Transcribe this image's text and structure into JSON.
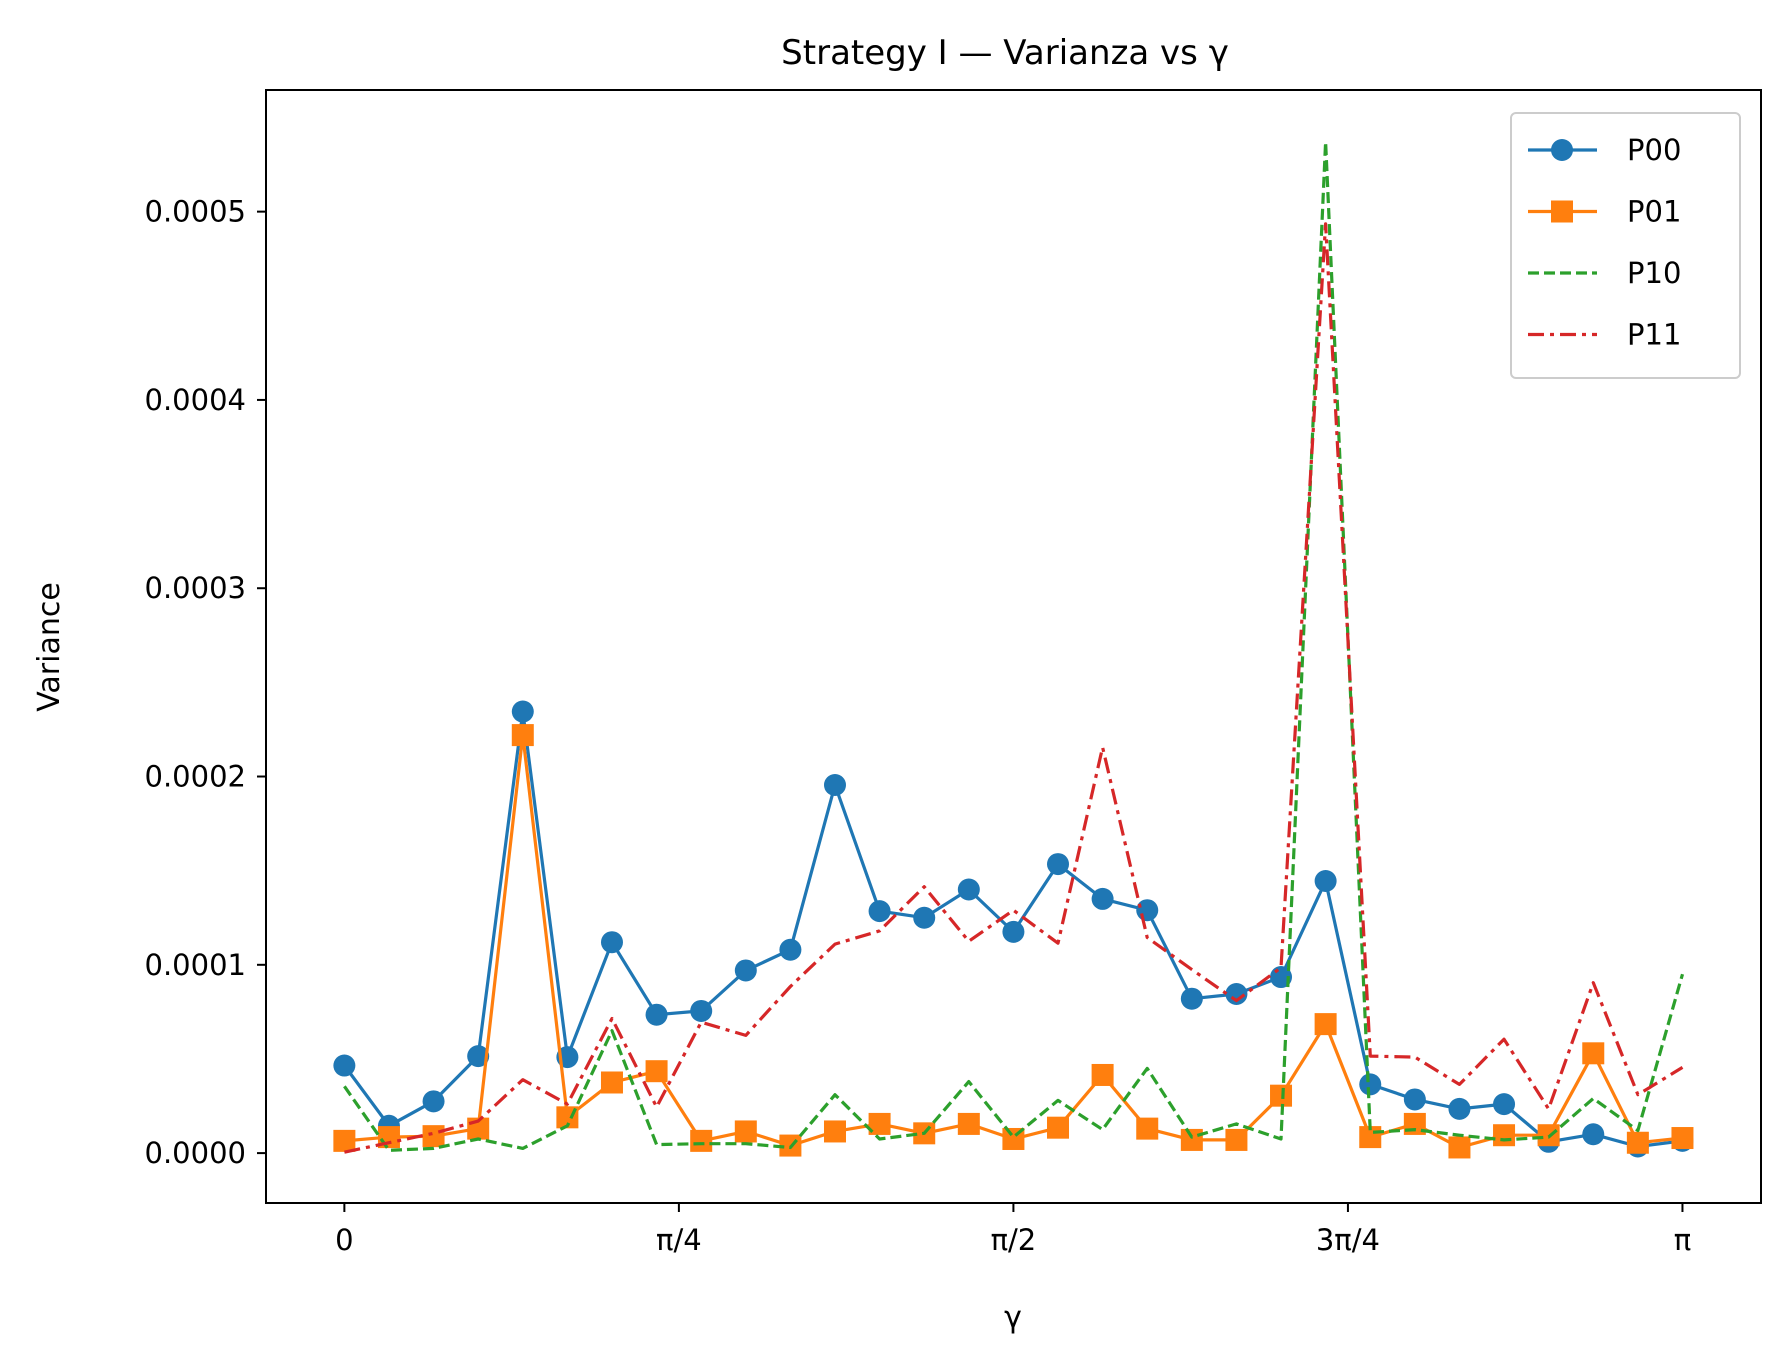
{
  "chart_data": {
    "type": "line",
    "title": "Strategy I — Varianza vs γ",
    "xlabel": "γ",
    "ylabel": "Variance",
    "xlim": [
      -0.184,
      3.326
    ],
    "ylim": [
      -2.65e-05,
      0.0005646
    ],
    "xticks": [
      {
        "value": 0,
        "label": "0"
      },
      {
        "value": 0.7854,
        "label": "π/4"
      },
      {
        "value": 1.5708,
        "label": "π/2"
      },
      {
        "value": 2.3562,
        "label": "3π/4"
      },
      {
        "value": 3.1416,
        "label": "π"
      }
    ],
    "yticks": [
      {
        "value": 0,
        "label": "0.0000"
      },
      {
        "value": 0.0001,
        "label": "0.0001"
      },
      {
        "value": 0.0002,
        "label": "0.0002"
      },
      {
        "value": 0.0003,
        "label": "0.0003"
      },
      {
        "value": 0.0004,
        "label": "0.0004"
      },
      {
        "value": 0.0005,
        "label": "0.0005"
      }
    ],
    "grid": false,
    "legend_position": "top-right",
    "x": [
      0,
      0.1047,
      0.2094,
      0.3142,
      0.4189,
      0.5236,
      0.6283,
      0.733,
      0.8378,
      0.9425,
      1.0472,
      1.1519,
      1.2566,
      1.3614,
      1.4661,
      1.5708,
      1.6755,
      1.7802,
      1.885,
      1.9897,
      2.0944,
      2.1991,
      2.3038,
      2.4086,
      2.5133,
      2.618,
      2.7227,
      2.8274,
      2.9322,
      3.0369,
      3.1416
    ],
    "series": [
      {
        "name": "P00",
        "color": "#1f77b4",
        "line_style": "solid",
        "marker": "circle",
        "values": [
          4.65e-05,
          1.45e-05,
          2.75e-05,
          5.15e-05,
          0.0002345,
          5.1e-05,
          0.000112,
          7.35e-05,
          7.55e-05,
          9.7e-05,
          0.000108,
          0.0001955,
          0.0001285,
          0.000125,
          0.00014,
          0.0001175,
          0.0001535,
          0.000135,
          0.000129,
          8.2e-05,
          8.45e-05,
          9.35e-05,
          0.0001445,
          3.65e-05,
          2.85e-05,
          2.35e-05,
          2.6e-05,
          6e-06,
          1e-05,
          3.5e-06,
          6.5e-06
        ]
      },
      {
        "name": "P01",
        "color": "#ff7f0e",
        "line_style": "solid",
        "marker": "square",
        "values": [
          6.5e-06,
          8.5e-06,
          9e-06,
          1.3e-05,
          0.000222,
          1.9e-05,
          3.75e-05,
          4.35e-05,
          6.5e-06,
          1.15e-05,
          4e-06,
          1.15e-05,
          1.55e-05,
          1.05e-05,
          1.55e-05,
          7.5e-06,
          1.35e-05,
          4.15e-05,
          1.3e-05,
          7e-06,
          7e-06,
          3.05e-05,
          6.85e-05,
          8.5e-06,
          1.55e-05,
          3e-06,
          9.5e-06,
          9.5e-06,
          5.3e-05,
          5.5e-06,
          8e-06
        ]
      },
      {
        "name": "P10",
        "color": "#2ca02c",
        "line_style": "dashed",
        "marker": "none",
        "values": [
          3.55e-05,
          1.5e-06,
          2.5e-06,
          7.5e-06,
          2.5e-06,
          1.45e-05,
          6.5e-05,
          4.5e-06,
          5e-06,
          5e-06,
          3e-06,
          3.1e-05,
          7.5e-06,
          1.05e-05,
          3.8e-05,
          8.5e-06,
          2.8e-05,
          1.25e-05,
          4.5e-05,
          8.5e-06,
          1.55e-05,
          7.5e-06,
          0.000537,
          1.1e-05,
          1.25e-05,
          9.5e-06,
          7e-06,
          8.5e-06,
          2.9e-05,
          1.2e-05,
          9.5e-05
        ]
      },
      {
        "name": "P11",
        "color": "#d62728",
        "line_style": "dashdot",
        "marker": "none",
        "values": [
          5e-07,
          5.5e-06,
          1.05e-05,
          1.7e-05,
          3.9e-05,
          2.6e-05,
          7.15e-05,
          2.45e-05,
          6.95e-05,
          6.25e-05,
          8.85e-05,
          0.000111,
          0.000118,
          0.0001415,
          0.0001125,
          0.000129,
          0.0001115,
          0.0002155,
          0.0001145,
          9.75e-05,
          8.1e-05,
          9.85e-05,
          0.0004935,
          5.15e-05,
          5.1e-05,
          3.65e-05,
          6.05e-05,
          2.35e-05,
          9.05e-05,
          3.1e-05,
          4.55e-05
        ]
      }
    ]
  }
}
